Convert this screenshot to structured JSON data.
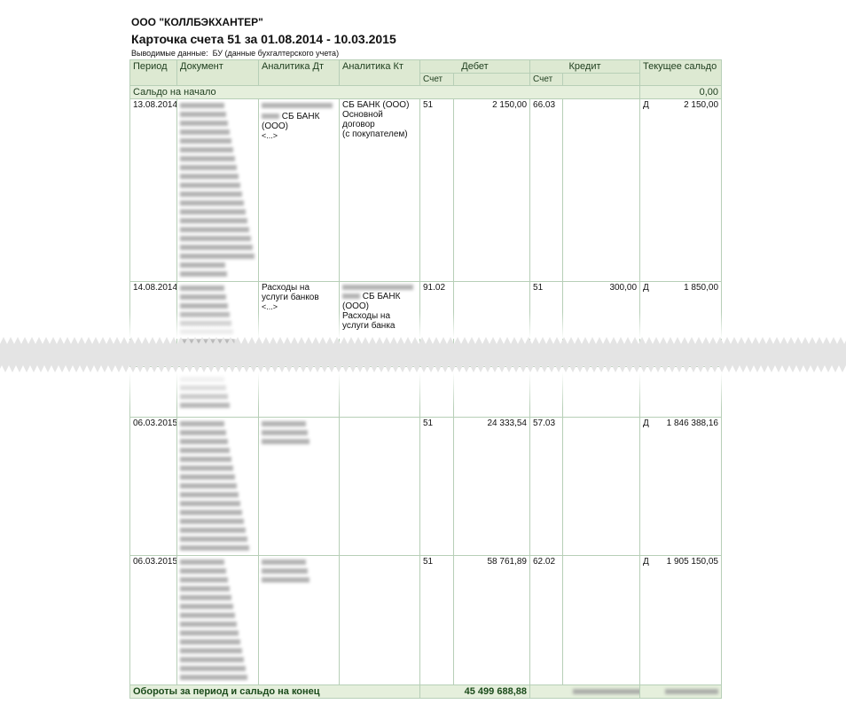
{
  "header": {
    "organization": "ООО \"КОЛЛБЭКХАНТЕР\"",
    "title": "Карточка счета 51 за 01.08.2014 - 10.03.2015",
    "output_label": "Выводимые данные:",
    "output_value": "БУ (данные бухгалтерского учета)"
  },
  "columns": {
    "period": "Период",
    "document": "Документ",
    "analytics_dt": "Аналитика Дт",
    "analytics_kt": "Аналитика Кт",
    "debit": "Дебет",
    "credit": "Кредит",
    "balance": "Текущее сальдо",
    "account": "Счет"
  },
  "opening": {
    "label": "Сальдо на начало",
    "value": "0,00"
  },
  "rows": [
    {
      "date": "13.08.2014",
      "dt": [
        "СБ БАНК",
        "(ООО)",
        "<...>"
      ],
      "kt": [
        "СБ БАНК (ООО)",
        "Основной договор",
        "(с покупателем)"
      ],
      "debit_account": "51",
      "debit_amount": "2 150,00",
      "credit_account": "66.03",
      "credit_amount": "",
      "balance_side": "Д",
      "balance": "2 150,00"
    },
    {
      "date": "14.08.2014",
      "dt": [
        "Расходы на услуги банков",
        "<...>"
      ],
      "kt": [
        "СБ БАНК",
        "(ООО)",
        "Расходы на услуги банка"
      ],
      "debit_account": "91.02",
      "debit_amount": "",
      "credit_account": "51",
      "credit_amount": "300,00",
      "balance_side": "Д",
      "balance": "1 850,00"
    },
    {
      "date": "06.03.2015",
      "debit_account": "51",
      "debit_amount": "24 333,54",
      "credit_account": "57.03",
      "credit_amount": "",
      "balance_side": "Д",
      "balance": "1 846 388,16"
    },
    {
      "date": "06.03.2015",
      "debit_account": "51",
      "debit_amount": "58 761,89",
      "credit_account": "62.02",
      "credit_amount": "",
      "balance_side": "Д",
      "balance": "1 905 150,05"
    }
  ],
  "totals": {
    "label": "Обороты за период и сальдо на конец",
    "debit": "45 499 688,88"
  },
  "colors": {
    "header_bg": "#dde9d2",
    "border": "#b7cfb7",
    "text_green": "#1d3d1d"
  }
}
